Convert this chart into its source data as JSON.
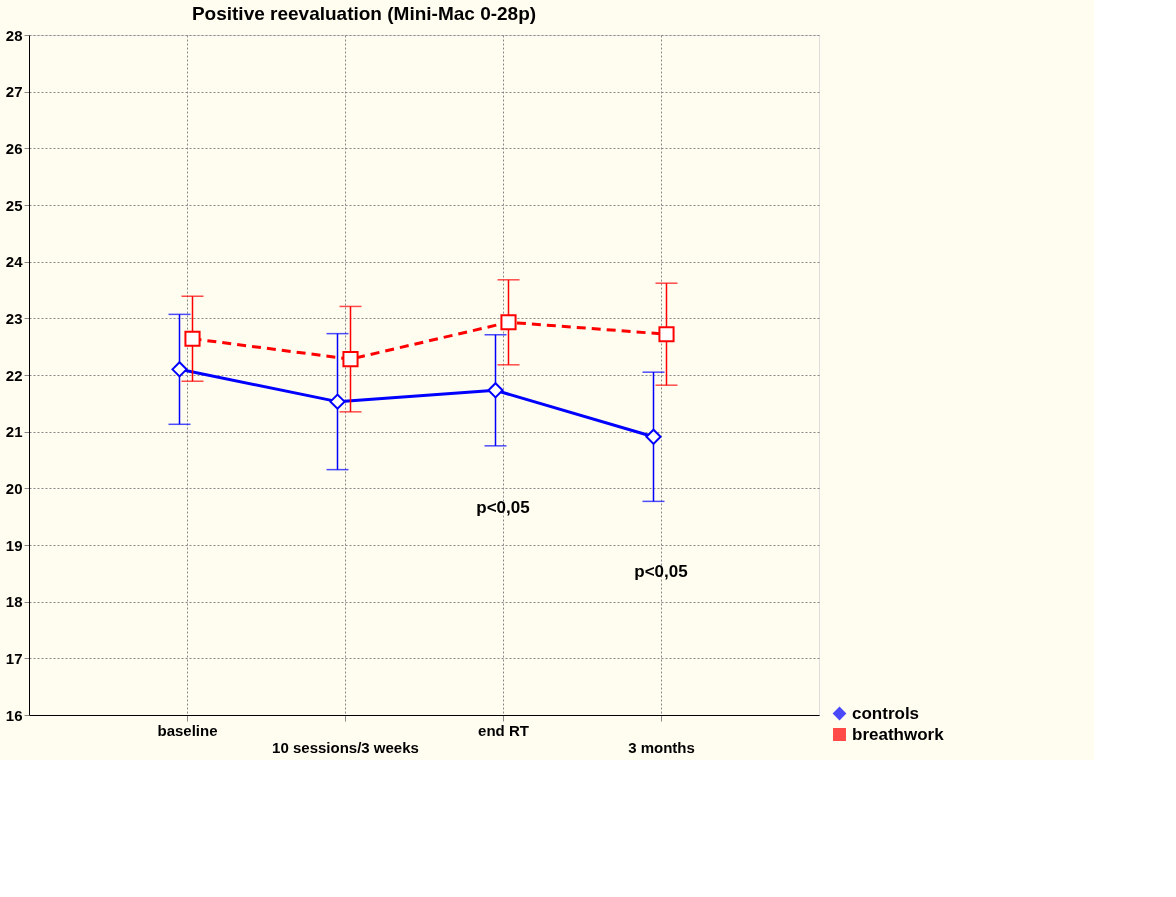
{
  "chart_data": {
    "type": "line",
    "title": "Positive reevaluation (Mini-Mac 0-28p)",
    "categories": [
      "baseline",
      "10 sessions/3 weeks",
      "end RT",
      "3 months"
    ],
    "series": [
      {
        "name": "controls",
        "color": "#0000ff",
        "values": [
          22.1,
          21.53,
          21.73,
          20.91
        ],
        "errors": [
          0.97,
          1.2,
          0.98,
          1.14
        ],
        "marker": "diamond",
        "line_style": "solid"
      },
      {
        "name": "breathwork",
        "color": "#ff0000",
        "values": [
          22.64,
          22.28,
          22.93,
          22.72
        ],
        "errors": [
          0.75,
          0.93,
          0.75,
          0.9
        ],
        "marker": "square",
        "line_style": "dashed"
      }
    ],
    "ylim": [
      16,
      28
    ],
    "yticks": [
      16,
      17,
      18,
      19,
      20,
      21,
      22,
      23,
      24,
      25,
      26,
      27,
      28
    ],
    "grid": true,
    "legend": "bottom right",
    "annotations": [
      "p<0,05",
      "p<0,05"
    ]
  }
}
